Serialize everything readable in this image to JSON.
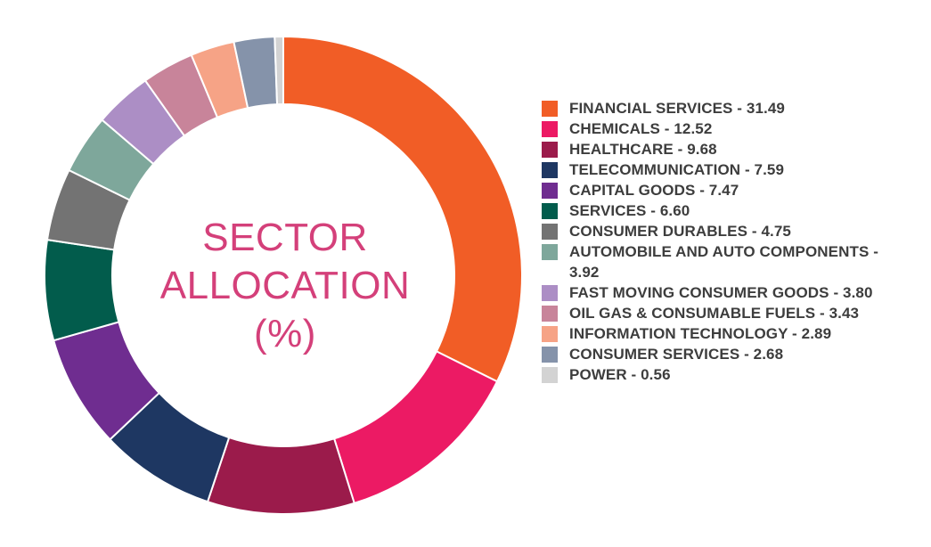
{
  "chart_data": {
    "type": "pie",
    "title_lines": [
      "SECTOR",
      "ALLOCATION",
      "(%)"
    ],
    "title_color": "#d4407a",
    "donut": true,
    "legend_position": "right",
    "slices": [
      {
        "label": "FINANCIAL SERVICES - 31.49",
        "category": "FINANCIAL SERVICES",
        "value": 31.49,
        "color": "#f15d26"
      },
      {
        "label": "CHEMICALS - 12.52",
        "category": "CHEMICALS",
        "value": 12.52,
        "color": "#ec1a64"
      },
      {
        "label": "HEALTHCARE - 9.68",
        "category": "HEALTHCARE",
        "value": 9.68,
        "color": "#9b1b4b"
      },
      {
        "label": "TELECOMMUNICATION - 7.59",
        "category": "TELECOMMUNICATION",
        "value": 7.59,
        "color": "#1e3762"
      },
      {
        "label": "CAPITAL GOODS - 7.47",
        "category": "CAPITAL GOODS",
        "value": 7.47,
        "color": "#6f2d90"
      },
      {
        "label": "SERVICES - 6.60",
        "category": "SERVICES",
        "value": 6.6,
        "color": "#025c4c"
      },
      {
        "label": "CONSUMER DURABLES - 4.75",
        "category": "CONSUMER DURABLES",
        "value": 4.75,
        "color": "#737373"
      },
      {
        "label": "AUTOMOBILE AND AUTO COMPONENTS - 3.92",
        "category": "AUTOMOBILE AND AUTO COMPONENTS",
        "value": 3.92,
        "color": "#7ea79b"
      },
      {
        "label": "FAST MOVING CONSUMER GOODS - 3.80",
        "category": "FAST MOVING CONSUMER GOODS",
        "value": 3.8,
        "color": "#ac8ec5"
      },
      {
        "label": "OIL GAS & CONSUMABLE FUELS - 3.43",
        "category": "OIL GAS & CONSUMABLE FUELS",
        "value": 3.43,
        "color": "#c8849a"
      },
      {
        "label": "INFORMATION TECHNOLOGY - 2.89",
        "category": "INFORMATION TECHNOLOGY",
        "value": 2.89,
        "color": "#f6a386"
      },
      {
        "label": "CONSUMER SERVICES - 2.68",
        "category": "CONSUMER SERVICES",
        "value": 2.68,
        "color": "#8593aa"
      },
      {
        "label": "POWER - 0.56",
        "category": "POWER",
        "value": 0.56,
        "color": "#d3d3d3"
      }
    ]
  }
}
